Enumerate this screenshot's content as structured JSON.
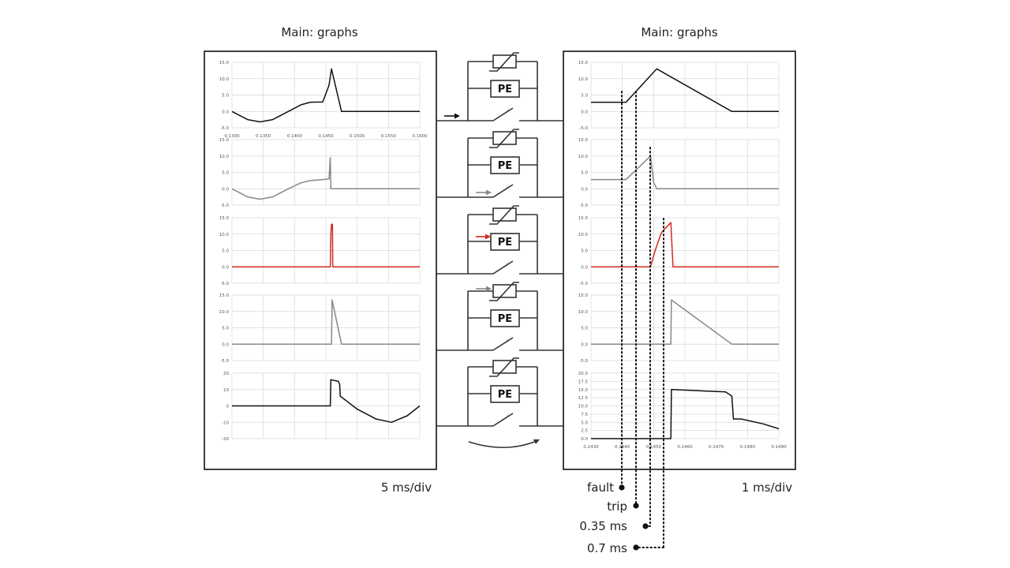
{
  "titles": {
    "left": "Main: graphs",
    "right": "Main: graphs"
  },
  "labels": {
    "left_scale": "5 ms/div",
    "right_scale": "1 ms/div",
    "fault": "fault",
    "trip": "trip",
    "t035": "0.35 ms",
    "t07": "0.7 ms"
  },
  "pe_label": "PE",
  "colors": {
    "black": "#111111",
    "gray": "#888888",
    "red": "#d62a1e"
  },
  "chart_data": [
    {
      "type": "line",
      "panel": "left",
      "row": 0,
      "color": "black",
      "xlim": [
        0.13,
        0.16
      ],
      "ylim": [
        -5,
        15
      ],
      "x_ticks": [
        "0.1300",
        "0.1350",
        "0.1400",
        "0.1450",
        "0.1500",
        "0.1550",
        "0.1600"
      ],
      "y_ticks": [
        "15.0",
        "10.0",
        "5.0",
        "0.0",
        "-5.0"
      ],
      "x": [
        0.13,
        0.1325,
        0.1345,
        0.1365,
        0.139,
        0.141,
        0.1425,
        0.1445,
        0.1455,
        0.1459,
        0.1475,
        0.148,
        0.16
      ],
      "y": [
        0,
        -2.5,
        -3.2,
        -2.5,
        0,
        2,
        2.8,
        2.9,
        8,
        13,
        0,
        0,
        0
      ]
    },
    {
      "type": "line",
      "panel": "left",
      "row": 1,
      "color": "gray",
      "xlim": [
        0.13,
        0.16
      ],
      "ylim": [
        -5,
        15
      ],
      "x_ticks": [],
      "y_ticks": [
        "15.0",
        "10.0",
        "5.0",
        "0.0",
        "-5.0"
      ],
      "x": [
        0.13,
        0.1325,
        0.1345,
        0.1365,
        0.139,
        0.141,
        0.1425,
        0.1445,
        0.1455,
        0.1457,
        0.1458,
        0.16
      ],
      "y": [
        0,
        -2.5,
        -3.2,
        -2.5,
        0,
        1.8,
        2.5,
        2.8,
        3,
        9.5,
        0,
        0
      ]
    },
    {
      "type": "line",
      "panel": "left",
      "row": 2,
      "color": "red",
      "xlim": [
        0.13,
        0.16
      ],
      "ylim": [
        -5,
        15
      ],
      "x_ticks": [],
      "y_ticks": [
        "15.0",
        "10.0",
        "5.0",
        "0.0",
        "-5.0"
      ],
      "x": [
        0.13,
        0.1457,
        0.1458,
        0.1459,
        0.14605,
        0.1461,
        0.16
      ],
      "y": [
        0,
        0,
        10,
        13,
        13,
        0,
        0
      ]
    },
    {
      "type": "line",
      "panel": "left",
      "row": 3,
      "color": "gray",
      "xlim": [
        0.13,
        0.16
      ],
      "ylim": [
        -5,
        15
      ],
      "x_ticks": [],
      "y_ticks": [
        "15.0",
        "10.0",
        "5.0",
        "0.0",
        "-5.0"
      ],
      "x": [
        0.13,
        0.1459,
        0.146,
        0.1475,
        0.16
      ],
      "y": [
        0,
        0,
        13.5,
        0,
        0
      ]
    },
    {
      "type": "line",
      "panel": "left",
      "row": 4,
      "color": "black",
      "xlim": [
        0.13,
        0.16
      ],
      "ylim": [
        -20,
        20
      ],
      "x_ticks": [],
      "y_ticks": [
        "20",
        "10",
        "0",
        "-10",
        "-20"
      ],
      "x": [
        0.13,
        0.1457,
        0.1458,
        0.147,
        0.1472,
        0.1473,
        0.15,
        0.153,
        0.1555,
        0.158,
        0.16
      ],
      "y": [
        0,
        0,
        16,
        15,
        13,
        6,
        -2,
        -8,
        -10,
        -6,
        0
      ]
    },
    {
      "type": "line",
      "panel": "right",
      "row": 0,
      "color": "black",
      "xlim": [
        0.143,
        0.149
      ],
      "ylim": [
        -5,
        15
      ],
      "x_ticks": [],
      "y_ticks": [
        "15.0",
        "10.0",
        "5.0",
        "0.0",
        "-5.0"
      ],
      "x": [
        0.143,
        0.14412,
        0.1451,
        0.1475,
        0.149
      ],
      "y": [
        2.8,
        2.8,
        13,
        0,
        0
      ]
    },
    {
      "type": "line",
      "panel": "right",
      "row": 1,
      "color": "gray",
      "xlim": [
        0.143,
        0.149
      ],
      "ylim": [
        -5,
        15
      ],
      "x_ticks": [],
      "y_ticks": [
        "15.0",
        "10.0",
        "5.0",
        "0.0",
        "-5.0"
      ],
      "x": [
        0.143,
        0.14412,
        0.1449,
        0.145,
        0.1451,
        0.149
      ],
      "y": [
        2.8,
        2.8,
        10,
        2,
        0,
        0
      ]
    },
    {
      "type": "line",
      "panel": "right",
      "row": 2,
      "color": "red",
      "xlim": [
        0.143,
        0.149
      ],
      "ylim": [
        -5,
        15
      ],
      "x_ticks": [],
      "y_ticks": [
        "15.0",
        "10.0",
        "5.0",
        "0.0",
        "-5.0"
      ],
      "x": [
        0.143,
        0.1449,
        0.14505,
        0.14525,
        0.14555,
        0.14562,
        0.149
      ],
      "y": [
        0,
        0,
        5,
        10.5,
        13.5,
        0,
        0
      ]
    },
    {
      "type": "line",
      "panel": "right",
      "row": 3,
      "color": "gray",
      "xlim": [
        0.143,
        0.149
      ],
      "ylim": [
        -5,
        15
      ],
      "x_ticks": [],
      "y_ticks": [
        "15.0",
        "10.0",
        "5.0",
        "0.0",
        "-5.0"
      ],
      "x": [
        0.143,
        0.14555,
        0.14557,
        0.1475,
        0.149
      ],
      "y": [
        0,
        0,
        13.5,
        0,
        0
      ]
    },
    {
      "type": "line",
      "panel": "right",
      "row": 4,
      "color": "black",
      "xlim": [
        0.143,
        0.149
      ],
      "ylim": [
        0,
        20
      ],
      "x_ticks": [
        "0.1430",
        "0.1440",
        "0.1450",
        "0.1460",
        "0.1470",
        "0.1480",
        "0.1490"
      ],
      "y_ticks": [
        "20.0",
        "17.5",
        "15.0",
        "12.5",
        "10.0",
        "7.5",
        "5.0",
        "2.5",
        "0.0"
      ],
      "x": [
        0.143,
        0.14555,
        0.14557,
        0.1465,
        0.1473,
        0.1475,
        0.14755,
        0.1478,
        0.1485,
        0.149
      ],
      "y": [
        0,
        0,
        15,
        14.6,
        14.3,
        13,
        6,
        6,
        4.5,
        3
      ]
    }
  ]
}
